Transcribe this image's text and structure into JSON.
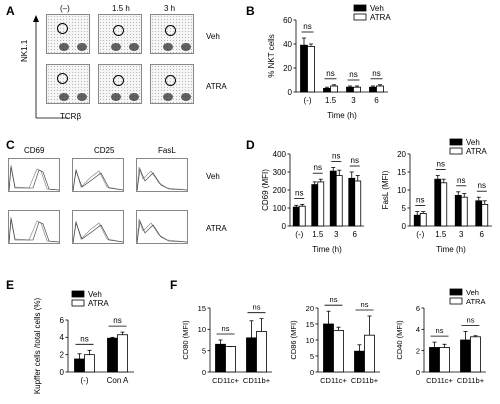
{
  "panels": {
    "A": {
      "label": "A",
      "col_headers": [
        "(–)",
        "1.5 h",
        "3 h"
      ],
      "row_labels": [
        "Veh",
        "ATRA"
      ],
      "y_axis": "NK1.1",
      "x_axis": "TCRβ"
    },
    "C": {
      "label": "C",
      "col_headers": [
        "CD69",
        "CD25",
        "FasL"
      ],
      "row_labels": [
        "Veh",
        "ATRA"
      ]
    },
    "B": {
      "label": "B"
    },
    "D": {
      "label": "D"
    },
    "E": {
      "label": "E"
    },
    "F": {
      "label": "F"
    }
  },
  "legend": {
    "veh": "Veh",
    "atra": "ATRA",
    "veh_color": "#000000",
    "atra_color": "#ffffff"
  },
  "sig": "ns",
  "chart_data": [
    {
      "id": "B",
      "type": "bar",
      "ylabel": "% NKT cells",
      "xlabel": "Time (h)",
      "categories": [
        "(-)",
        "1.5",
        "3",
        "6"
      ],
      "ylim": [
        0,
        60
      ],
      "yticks": [
        0,
        20,
        40,
        60
      ],
      "series": [
        {
          "name": "Veh",
          "values": [
            39,
            3,
            4,
            4
          ],
          "err": [
            6,
            1,
            1,
            1
          ]
        },
        {
          "name": "ATRA",
          "values": [
            38,
            5,
            4,
            5
          ],
          "err": [
            2,
            1,
            1,
            1
          ]
        }
      ],
      "legend": "top-right"
    },
    {
      "id": "D1",
      "type": "bar",
      "ylabel": "CD69 (MFI)",
      "xlabel": "Time (h)",
      "categories": [
        "(-)",
        "1.5",
        "3",
        "6"
      ],
      "ylim": [
        0,
        400
      ],
      "yticks": [
        0,
        100,
        200,
        300,
        400
      ],
      "series": [
        {
          "name": "Veh",
          "values": [
            105,
            230,
            305,
            265
          ],
          "err": [
            10,
            15,
            20,
            35
          ]
        },
        {
          "name": "ATRA",
          "values": [
            110,
            245,
            280,
            250
          ],
          "err": [
            10,
            15,
            30,
            30
          ]
        }
      ]
    },
    {
      "id": "D2",
      "type": "bar",
      "ylabel": "FasL (MFI)",
      "xlabel": "Time (h)",
      "categories": [
        "(-)",
        "1.5",
        "3",
        "6"
      ],
      "ylim": [
        0,
        20
      ],
      "yticks": [
        0,
        5,
        10,
        15,
        20
      ],
      "series": [
        {
          "name": "Veh",
          "values": [
            3,
            13,
            8.5,
            7
          ],
          "err": [
            1,
            1,
            1,
            1
          ]
        },
        {
          "name": "ATRA",
          "values": [
            3.5,
            12,
            8,
            6
          ],
          "err": [
            0.5,
            1,
            1,
            1
          ]
        }
      ],
      "legend": "top-right"
    },
    {
      "id": "E",
      "type": "bar",
      "ylabel": "Kupffer cells /total cells (%)",
      "categories": [
        "(-)",
        "Con A"
      ],
      "ylim": [
        0,
        6
      ],
      "yticks": [
        0,
        2,
        4,
        6
      ],
      "series": [
        {
          "name": "Veh",
          "values": [
            1.5,
            3.9
          ],
          "err": [
            0.6,
            0.1
          ]
        },
        {
          "name": "ATRA",
          "values": [
            2.0,
            4.3
          ],
          "err": [
            0.5,
            0.3
          ]
        }
      ],
      "legend": "top-left"
    },
    {
      "id": "F1",
      "type": "bar",
      "ylabel": "CD80 (MFI)",
      "categories": [
        "CD11c+",
        "CD11b+"
      ],
      "ylim": [
        0,
        15
      ],
      "yticks": [
        0,
        5,
        10,
        15
      ],
      "series": [
        {
          "name": "Veh",
          "values": [
            6.5,
            8
          ],
          "err": [
            1,
            4
          ]
        },
        {
          "name": "ATRA",
          "values": [
            6,
            9.5
          ],
          "err": [
            0,
            3
          ]
        }
      ]
    },
    {
      "id": "F2",
      "type": "bar",
      "ylabel": "CD86 (MFI)",
      "categories": [
        "CD11c+",
        "CD11b+"
      ],
      "ylim": [
        0,
        20
      ],
      "yticks": [
        0,
        5,
        10,
        15,
        20
      ],
      "series": [
        {
          "name": "Veh",
          "values": [
            15,
            6.5
          ],
          "err": [
            4,
            2
          ]
        },
        {
          "name": "ATRA",
          "values": [
            13,
            11.5
          ],
          "err": [
            1,
            6
          ]
        }
      ]
    },
    {
      "id": "F3",
      "type": "bar",
      "ylabel": "CD40 (MFI)",
      "categories": [
        "CD11c+",
        "CD11b+"
      ],
      "ylim": [
        0,
        6
      ],
      "yticks": [
        0,
        2,
        4,
        6
      ],
      "series": [
        {
          "name": "Veh",
          "values": [
            2.3,
            3.0
          ],
          "err": [
            0.5,
            0.8
          ]
        },
        {
          "name": "ATRA",
          "values": [
            2.3,
            3.3
          ],
          "err": [
            0.3,
            0.1
          ]
        }
      ],
      "legend": "top-right"
    }
  ]
}
